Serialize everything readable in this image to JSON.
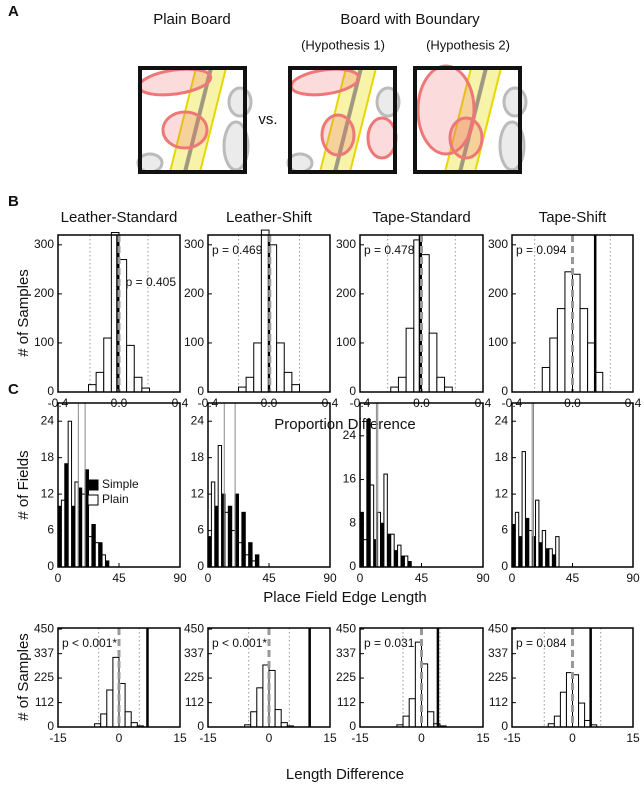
{
  "panel_labels": [
    "A",
    "B",
    "C"
  ],
  "panel_a": {
    "titles": [
      "Plain Board",
      "Board with Boundary"
    ],
    "subtitles": [
      "(Hypothesis 1)",
      "(Hypothesis 2)"
    ],
    "separator": "vs."
  },
  "rows": [
    {
      "ylabel": "# of Samples",
      "xlabel": "Proportion Difference"
    },
    {
      "ylabel": "# of Fields",
      "xlabel": "Place Field Edge Length"
    },
    {
      "ylabel": "# of Samples",
      "xlabel": "Length Difference"
    }
  ],
  "chart_data": [
    {
      "type": "histogram",
      "title": "Leather-Standard",
      "bins": [
        -0.2,
        -0.15,
        -0.1,
        -0.05,
        0,
        0.05,
        0.1,
        0.15,
        0.2
      ],
      "values": [
        15,
        40,
        110,
        325,
        270,
        95,
        30,
        8
      ],
      "color": "#ffffff",
      "xlim": [
        -0.4,
        0.4
      ],
      "xticks": [
        -0.4,
        {
          "value": 0,
          "label": "0.0"
        },
        0.4
      ],
      "ylim": [
        0,
        320
      ],
      "yticks": [
        0,
        100,
        200,
        300
      ],
      "annotation": "p = 0.405",
      "observed": -0.01,
      "mean": 0,
      "ci": [
        -0.19,
        0.19
      ]
    },
    {
      "type": "histogram",
      "title": "Leather-Shift",
      "bins": [
        -0.2,
        -0.15,
        -0.1,
        -0.05,
        0,
        0.05,
        0.1,
        0.15,
        0.2
      ],
      "values": [
        10,
        30,
        100,
        330,
        300,
        100,
        40,
        15
      ],
      "color": "#ffffff",
      "xlim": [
        -0.4,
        0.4
      ],
      "xticks": [
        -0.4,
        {
          "value": 0,
          "label": "0.0"
        },
        0.4
      ],
      "ylim": [
        0,
        320
      ],
      "yticks": [
        0,
        100,
        200,
        300
      ],
      "annotation": "p = 0.469",
      "observed": 0,
      "mean": 0.005,
      "ci": [
        -0.2,
        0.2
      ]
    },
    {
      "type": "histogram",
      "title": "Tape-Standard",
      "bins": [
        -0.2,
        -0.15,
        -0.1,
        -0.05,
        0,
        0.05,
        0.1,
        0.15,
        0.2
      ],
      "values": [
        10,
        30,
        130,
        310,
        280,
        120,
        30,
        10
      ],
      "color": "#ffffff",
      "xlim": [
        -0.4,
        0.4
      ],
      "xticks": [
        -0.4,
        {
          "value": 0,
          "label": "0.0"
        },
        0.4
      ],
      "ylim": [
        0,
        320
      ],
      "yticks": [
        0,
        100,
        200,
        300
      ],
      "annotation": "p = 0.478",
      "observed": -0.01,
      "mean": 0,
      "ci": [
        -0.22,
        0.22
      ]
    },
    {
      "type": "histogram",
      "title": "Tape-Shift",
      "bins": [
        -0.2,
        -0.15,
        -0.1,
        -0.05,
        0,
        0.05,
        0.1,
        0.15,
        0.2
      ],
      "values": [
        50,
        110,
        170,
        245,
        240,
        170,
        100,
        40
      ],
      "color": "#ffffff",
      "xlim": [
        -0.4,
        0.4
      ],
      "xticks": [
        -0.4,
        {
          "value": 0,
          "label": "0.0"
        },
        0.4
      ],
      "ylim": [
        0,
        320
      ],
      "yticks": [
        0,
        100,
        200,
        300
      ],
      "annotation": "p = 0.094",
      "observed": 0.15,
      "mean": 0,
      "ci": [
        -0.25,
        0.25
      ]
    },
    {
      "type": "histogram",
      "bins": [
        0,
        5,
        10,
        15,
        20,
        25,
        30,
        35,
        40,
        45,
        50
      ],
      "series": [
        {
          "name": "Simple",
          "color": "#000000",
          "values": [
            10,
            17,
            10,
            13,
            16,
            7,
            4,
            1,
            0,
            0
          ],
          "mean": 20
        },
        {
          "name": "Plain",
          "color": "#ffffff",
          "values": [
            11,
            24,
            14,
            12,
            5,
            4,
            2,
            0,
            0,
            0
          ],
          "mean": 15
        }
      ],
      "xlim": [
        0,
        90
      ],
      "xticks": [
        0,
        45,
        90
      ],
      "ylim": [
        0,
        27
      ],
      "yticks": [
        0,
        6,
        12,
        18,
        24
      ],
      "legend": "top"
    },
    {
      "type": "histogram",
      "bins": [
        0,
        5,
        10,
        15,
        20,
        25,
        30,
        35,
        40,
        45,
        50
      ],
      "series": [
        {
          "name": "Simple",
          "color": "#000000",
          "values": [
            5,
            10,
            12,
            10,
            12,
            9,
            4,
            2,
            0,
            0
          ],
          "mean": 20
        },
        {
          "name": "Plain",
          "color": "#ffffff",
          "values": [
            14,
            20,
            9,
            6,
            4,
            2,
            1,
            0,
            0,
            0
          ],
          "mean": 12
        }
      ],
      "xlim": [
        0,
        90
      ],
      "xticks": [
        0,
        45,
        90
      ],
      "ylim": [
        0,
        27
      ],
      "yticks": [
        0,
        6,
        12,
        18,
        24
      ]
    },
    {
      "type": "histogram",
      "bins": [
        0,
        5,
        10,
        15,
        20,
        25,
        30,
        35,
        40,
        45,
        50
      ],
      "series": [
        {
          "name": "Simple",
          "color": "#000000",
          "values": [
            10,
            27,
            5,
            8,
            6,
            3,
            2,
            1,
            0,
            0
          ],
          "mean": 12
        },
        {
          "name": "Plain",
          "color": "#ffffff",
          "values": [
            5,
            15,
            10,
            17,
            6,
            4,
            2,
            0,
            0,
            0
          ],
          "mean": 13
        }
      ],
      "xlim": [
        0,
        90
      ],
      "xticks": [
        0,
        45,
        90
      ],
      "ylim": [
        0,
        30
      ],
      "yticks": [
        0,
        8,
        16,
        24
      ]
    },
    {
      "type": "histogram",
      "bins": [
        0,
        5,
        10,
        15,
        20,
        25,
        30,
        35,
        40,
        45,
        50
      ],
      "series": [
        {
          "name": "Simple",
          "color": "#000000",
          "values": [
            7,
            5,
            8,
            5,
            4,
            3,
            2,
            0,
            0,
            0
          ],
          "mean": 15
        },
        {
          "name": "Plain",
          "color": "#ffffff",
          "values": [
            9,
            19,
            6,
            11,
            6,
            3,
            5,
            0,
            0,
            0
          ],
          "mean": 16
        }
      ],
      "xlim": [
        0,
        90
      ],
      "xticks": [
        0,
        45,
        90
      ],
      "ylim": [
        0,
        27
      ],
      "yticks": [
        0,
        6,
        12,
        18,
        24
      ]
    },
    {
      "type": "histogram",
      "bins": [
        -6,
        -4.5,
        -3,
        -1.5,
        0,
        1.5,
        3,
        4.5,
        6
      ],
      "values": [
        15,
        60,
        170,
        320,
        200,
        70,
        20,
        5
      ],
      "color": "#ffffff",
      "xlim": [
        -15,
        15
      ],
      "xticks": [
        -15,
        0,
        15
      ],
      "ylim": [
        0,
        455
      ],
      "yticks": [
        0,
        112,
        225,
        337,
        450
      ],
      "annotation": "p < 0.001*",
      "observed": 7,
      "mean": 0,
      "ci": [
        -5,
        5
      ]
    },
    {
      "type": "histogram",
      "bins": [
        -6,
        -4.5,
        -3,
        -1.5,
        0,
        1.5,
        3,
        4.5,
        6
      ],
      "values": [
        10,
        70,
        180,
        285,
        260,
        80,
        20,
        5
      ],
      "color": "#ffffff",
      "xlim": [
        -15,
        15
      ],
      "xticks": [
        -15,
        0,
        15
      ],
      "ylim": [
        0,
        455
      ],
      "yticks": [
        0,
        112,
        225,
        337,
        450
      ],
      "annotation": "p < 0.001*",
      "observed": 10,
      "mean": 0,
      "ci": [
        -5,
        5
      ]
    },
    {
      "type": "histogram",
      "bins": [
        -6,
        -4.5,
        -3,
        -1.5,
        0,
        1.5,
        3,
        4.5,
        6
      ],
      "values": [
        10,
        50,
        130,
        390,
        290,
        70,
        15,
        5
      ],
      "color": "#ffffff",
      "xlim": [
        -15,
        15
      ],
      "xticks": [
        -15,
        0,
        15
      ],
      "ylim": [
        0,
        455
      ],
      "yticks": [
        0,
        112,
        225,
        337,
        450
      ],
      "annotation": "p = 0.031",
      "observed": 4,
      "mean": 0,
      "ci": [
        -4.5,
        4.5
      ]
    },
    {
      "type": "histogram",
      "bins": [
        -6,
        -4.5,
        -3,
        -1.5,
        0,
        1.5,
        3,
        4.5,
        6
      ],
      "values": [
        15,
        50,
        160,
        250,
        240,
        110,
        30,
        10
      ],
      "color": "#ffffff",
      "xlim": [
        -15,
        15
      ],
      "xticks": [
        -15,
        0,
        15
      ],
      "ylim": [
        0,
        455
      ],
      "yticks": [
        0,
        112,
        225,
        337,
        450
      ],
      "annotation": "p = 0.084",
      "observed": 4.5,
      "mean": 0,
      "ci": [
        -7,
        7
      ]
    }
  ]
}
